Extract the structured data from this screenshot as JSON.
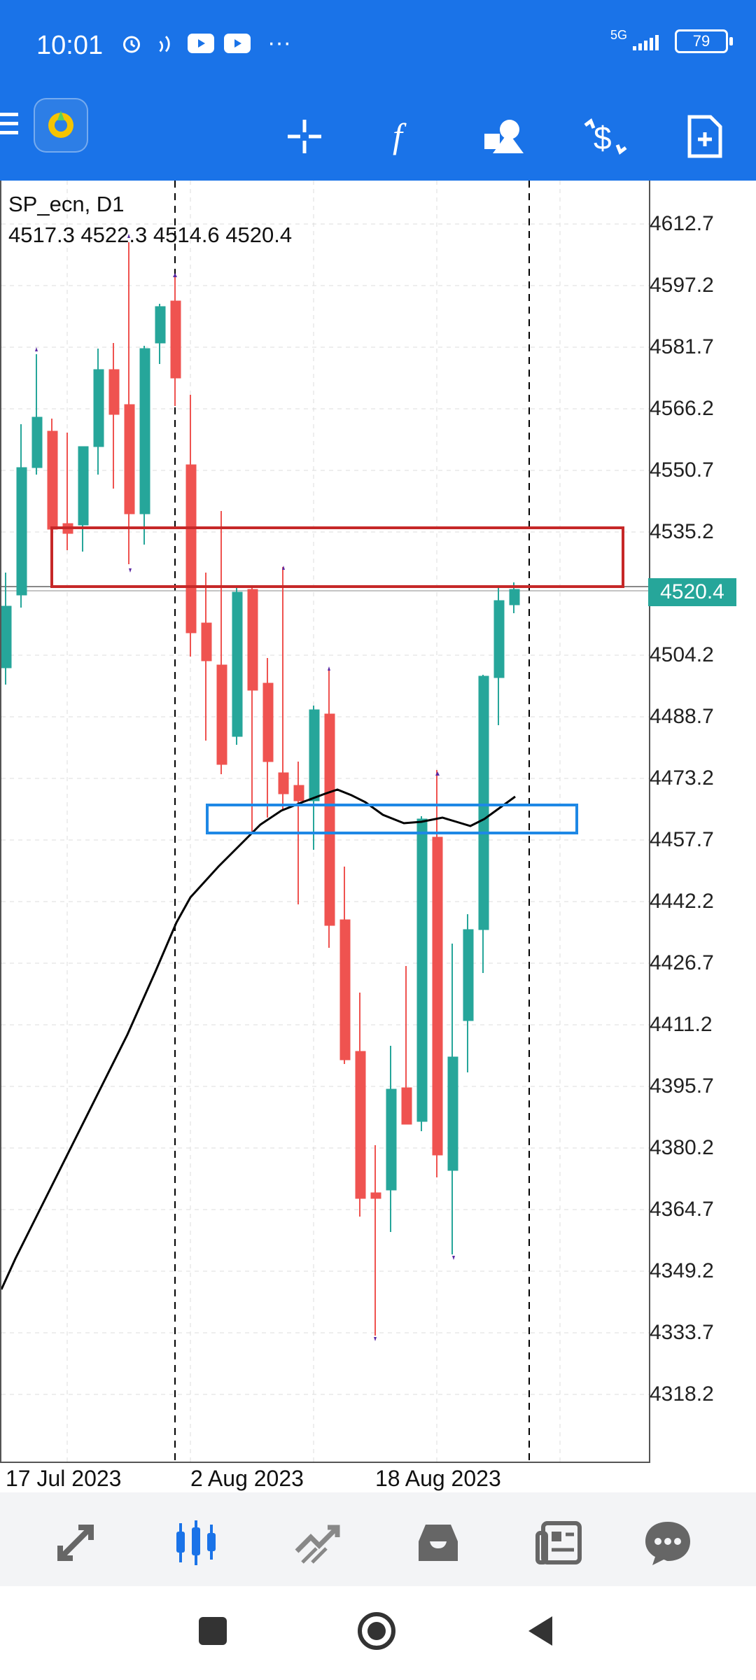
{
  "status_bar": {
    "time": "10:01",
    "battery": "79",
    "network": "5G"
  },
  "toolbar": {
    "menu_icon": "menu-icon",
    "crosshair_icon": "crosshair-icon",
    "indicators_icon": "function-icon",
    "objects_icon": "shapes-icon",
    "trade_icon": "dollar-arrows-icon",
    "new_order_icon": "add-document-icon"
  },
  "chart": {
    "symbol": "SP_ecn, D1",
    "ohlc": "4517.3 4522.3 4514.6 4520.4",
    "current_price": "4520.4",
    "price_labels": [
      "4612.7",
      "4597.2",
      "4581.7",
      "4566.2",
      "4550.7",
      "4535.2",
      "4504.2",
      "4488.7",
      "4473.2",
      "4457.7",
      "4442.2",
      "4426.7",
      "4411.2",
      "4395.7",
      "4380.2",
      "4364.7",
      "4349.2",
      "4333.7",
      "4318.2"
    ],
    "date_labels": [
      "17 Jul 2023",
      "2 Aug 2023",
      "18 Aug 2023"
    ],
    "colors": {
      "bull": "#26a69a",
      "bear": "#ef5350",
      "ma": "#000000",
      "resistance_box": "#d32f2f",
      "support_box": "#1e88e5"
    }
  },
  "bottom_nav": {
    "items": [
      {
        "name": "quotes",
        "icon": "quotes-arrows-icon"
      },
      {
        "name": "chart",
        "icon": "candles-icon"
      },
      {
        "name": "trade",
        "icon": "trade-chart-icon"
      },
      {
        "name": "history",
        "icon": "inbox-icon"
      },
      {
        "name": "news",
        "icon": "news-icon"
      },
      {
        "name": "messages",
        "icon": "chat-icon"
      }
    ],
    "active": "chart"
  }
}
